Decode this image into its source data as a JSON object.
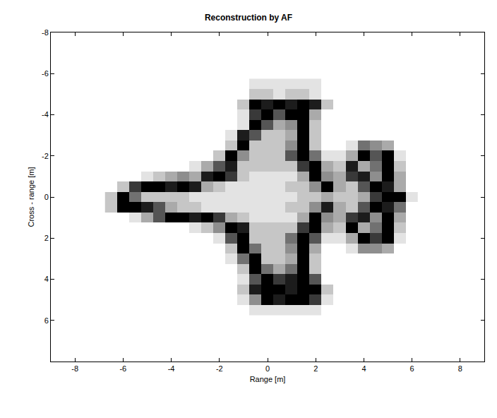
{
  "chart_data": {
    "type": "heatmap",
    "title": "Reconstruction by AF",
    "x_label": "Range [m]",
    "y_label": "Cross - range [m]",
    "xlim": [
      -9,
      9
    ],
    "xticks": [
      -8,
      -6,
      -4,
      -2,
      0,
      2,
      4,
      6,
      8
    ],
    "ylim": [
      -8,
      8
    ],
    "yticks": [
      -8,
      -6,
      -4,
      -2,
      0,
      2,
      4,
      6
    ],
    "grid": false,
    "zlim": [
      0,
      9
    ],
    "x": [
      -6.5,
      -6,
      -5.5,
      -5,
      -4.5,
      -4,
      -3.5,
      -3,
      -2.5,
      -2,
      -1.5,
      -1,
      -0.5,
      0,
      0.5,
      1,
      1.5,
      2,
      2.5,
      3,
      3.5,
      4,
      4.5,
      5,
      5.5,
      6
    ],
    "y": [
      -5.5,
      -5,
      -4.5,
      -4,
      -3.5,
      -3,
      -2.5,
      -2,
      -1.5,
      -1,
      -0.5,
      0,
      0.5,
      1,
      1.5,
      2,
      2.5,
      3,
      3.5,
      4,
      4.5,
      5,
      5.5
    ],
    "z": [
      [
        0,
        0,
        0,
        0,
        0,
        0,
        0,
        0,
        0,
        0,
        0,
        0,
        1,
        1,
        1,
        1,
        1,
        1,
        0,
        0,
        0,
        0,
        0,
        0,
        0,
        0
      ],
      [
        0,
        0,
        0,
        0,
        0,
        0,
        0,
        0,
        0,
        0,
        0,
        0,
        2,
        2,
        1,
        2,
        2,
        1,
        0,
        0,
        0,
        0,
        0,
        0,
        0,
        0
      ],
      [
        0,
        0,
        0,
        0,
        0,
        0,
        0,
        0,
        0,
        0,
        0,
        2,
        9,
        8,
        9,
        8,
        9,
        8,
        2,
        0,
        0,
        0,
        0,
        0,
        0,
        0
      ],
      [
        0,
        0,
        0,
        0,
        0,
        0,
        0,
        0,
        0,
        0,
        0,
        1,
        7,
        9,
        6,
        9,
        9,
        3,
        0,
        0,
        0,
        0,
        0,
        0,
        0,
        0
      ],
      [
        0,
        0,
        0,
        0,
        0,
        0,
        0,
        0,
        0,
        0,
        0,
        1,
        9,
        6,
        3,
        4,
        9,
        2,
        0,
        0,
        0,
        0,
        0,
        0,
        0,
        0
      ],
      [
        0,
        0,
        0,
        0,
        0,
        0,
        0,
        0,
        0,
        0,
        1,
        8,
        6,
        2,
        2,
        3,
        9,
        2,
        0,
        0,
        0,
        0,
        0,
        0,
        0,
        0
      ],
      [
        0,
        0,
        0,
        0,
        0,
        0,
        0,
        0,
        0,
        0,
        2,
        9,
        2,
        2,
        2,
        4,
        9,
        2,
        0,
        0,
        1,
        5,
        4,
        3,
        0,
        0
      ],
      [
        0,
        0,
        0,
        0,
        0,
        0,
        0,
        0,
        0,
        2,
        9,
        4,
        2,
        2,
        2,
        6,
        9,
        5,
        1,
        1,
        3,
        9,
        6,
        9,
        1,
        0
      ],
      [
        0,
        0,
        0,
        0,
        0,
        0,
        0,
        1,
        3,
        6,
        8,
        2,
        2,
        2,
        2,
        2,
        7,
        9,
        3,
        2,
        8,
        3,
        5,
        9,
        2,
        0
      ],
      [
        0,
        0,
        0,
        1,
        2,
        3,
        4,
        3,
        8,
        9,
        7,
        2,
        1,
        1,
        1,
        1,
        3,
        9,
        4,
        3,
        7,
        8,
        4,
        9,
        3,
        0
      ],
      [
        0,
        2,
        7,
        9,
        9,
        8,
        9,
        8,
        3,
        2,
        1,
        1,
        1,
        1,
        1,
        2,
        2,
        4,
        9,
        3,
        2,
        6,
        9,
        8,
        3,
        0
      ],
      [
        2,
        9,
        5,
        2,
        2,
        2,
        2,
        1,
        1,
        1,
        1,
        1,
        1,
        1,
        1,
        1,
        2,
        2,
        3,
        2,
        2,
        3,
        7,
        9,
        9,
        1
      ],
      [
        2,
        9,
        9,
        8,
        6,
        3,
        2,
        2,
        1,
        1,
        1,
        1,
        1,
        1,
        1,
        2,
        2,
        4,
        8,
        3,
        2,
        6,
        9,
        8,
        5,
        0
      ],
      [
        0,
        0,
        1,
        3,
        6,
        9,
        9,
        8,
        9,
        7,
        3,
        2,
        1,
        1,
        1,
        1,
        3,
        9,
        4,
        3,
        7,
        8,
        4,
        9,
        3,
        0
      ],
      [
        0,
        0,
        0,
        0,
        0,
        0,
        0,
        1,
        2,
        4,
        9,
        8,
        2,
        2,
        2,
        2,
        7,
        9,
        3,
        2,
        9,
        3,
        5,
        9,
        2,
        0
      ],
      [
        0,
        0,
        0,
        0,
        0,
        0,
        0,
        0,
        0,
        1,
        6,
        9,
        2,
        2,
        2,
        5,
        9,
        6,
        1,
        1,
        3,
        9,
        7,
        9,
        1,
        0
      ],
      [
        0,
        0,
        0,
        0,
        0,
        0,
        0,
        0,
        0,
        0,
        2,
        9,
        5,
        2,
        2,
        4,
        9,
        3,
        0,
        0,
        1,
        4,
        4,
        3,
        0,
        0
      ],
      [
        0,
        0,
        0,
        0,
        0,
        0,
        0,
        0,
        0,
        0,
        1,
        5,
        9,
        2,
        2,
        3,
        9,
        2,
        0,
        0,
        0,
        0,
        0,
        0,
        0,
        0
      ],
      [
        0,
        0,
        0,
        0,
        0,
        0,
        0,
        0,
        0,
        0,
        0,
        2,
        9,
        5,
        3,
        5,
        9,
        2,
        0,
        0,
        0,
        0,
        0,
        0,
        0,
        0
      ],
      [
        0,
        0,
        0,
        0,
        0,
        0,
        0,
        0,
        0,
        0,
        0,
        1,
        6,
        9,
        7,
        8,
        9,
        6,
        0,
        0,
        0,
        0,
        0,
        0,
        0,
        0
      ],
      [
        0,
        0,
        0,
        0,
        0,
        0,
        0,
        0,
        0,
        0,
        0,
        2,
        8,
        9,
        9,
        8,
        9,
        9,
        2,
        0,
        0,
        0,
        0,
        0,
        0,
        0
      ],
      [
        0,
        0,
        0,
        0,
        0,
        0,
        0,
        0,
        0,
        0,
        0,
        1,
        4,
        9,
        8,
        9,
        9,
        7,
        1,
        0,
        0,
        0,
        0,
        0,
        0,
        0
      ],
      [
        0,
        0,
        0,
        0,
        0,
        0,
        0,
        0,
        0,
        0,
        0,
        0,
        1,
        1,
        1,
        1,
        1,
        1,
        0,
        0,
        0,
        0,
        0,
        0,
        0,
        0
      ]
    ]
  }
}
